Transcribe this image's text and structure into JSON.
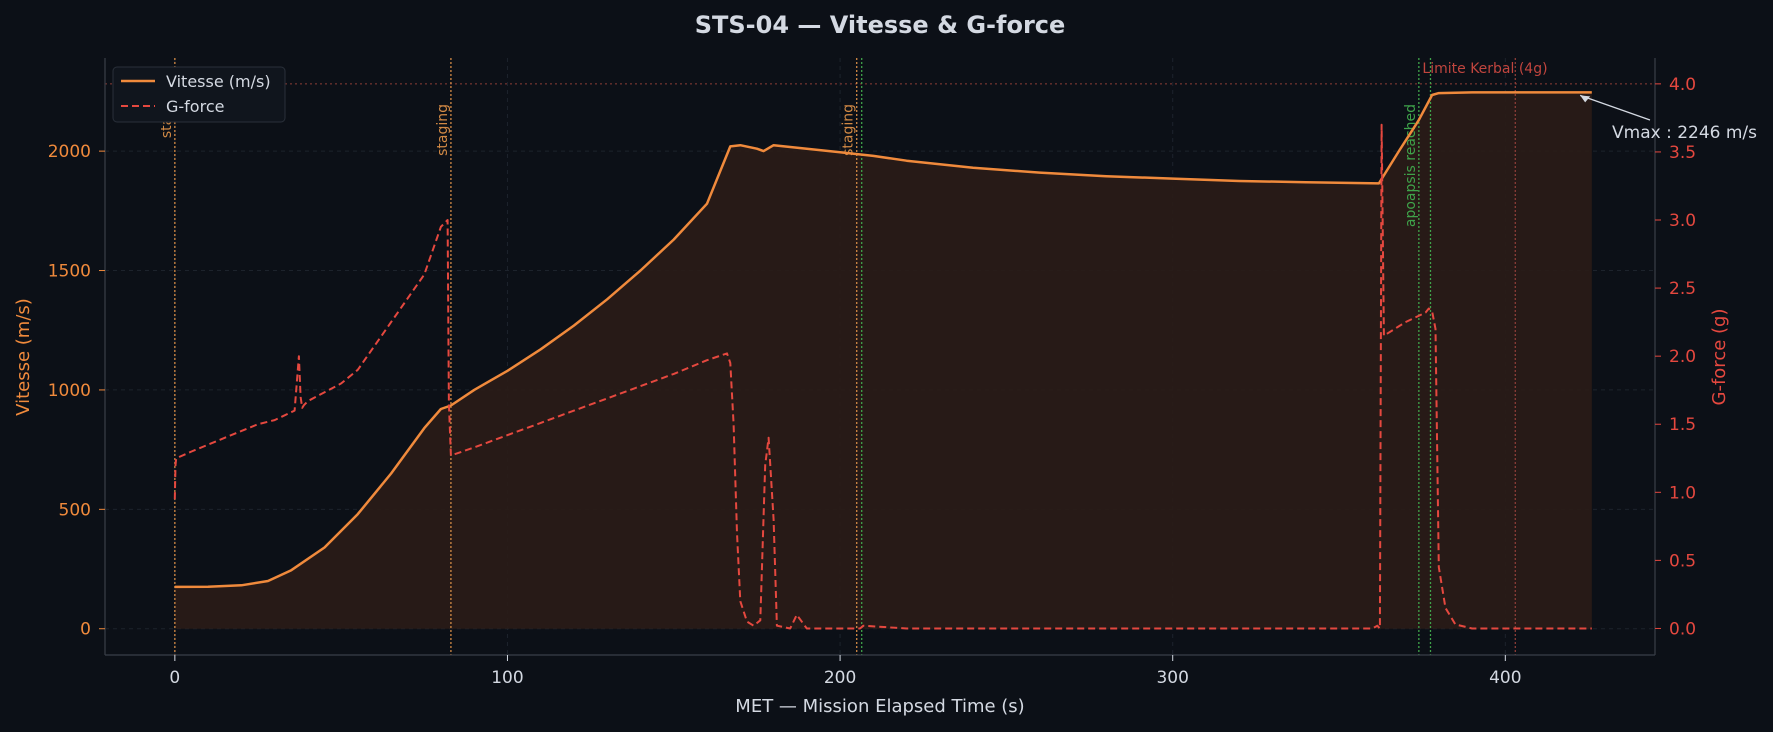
{
  "chart_data": {
    "type": "line",
    "title": "STS-04 — Vitesse & G-force",
    "xlabel": "MET — Mission Elapsed Time (s)",
    "ylabel_left": "Vitesse (m/s)",
    "ylabel_right": "G-force (g)",
    "xlim": [
      -21,
      445
    ],
    "ylim_left": [
      -110,
      2390
    ],
    "ylim_right": [
      -0.195,
      4.19
    ],
    "x_ticks": [
      0,
      100,
      200,
      300,
      400
    ],
    "y_left_ticks": [
      0,
      500,
      1000,
      1500,
      2000
    ],
    "y_right_ticks": [
      0.0,
      0.5,
      1.0,
      1.5,
      2.0,
      2.5,
      3.0,
      3.5,
      4.0
    ],
    "grid": true,
    "legend_position": "top-left",
    "colors": {
      "background": "#0c1017",
      "axes": "#3a3f48",
      "grid": "#1d232c",
      "text": "#d4d9e2",
      "velocity": "#f08a3c",
      "velocity_fill": "#2a1c17",
      "gforce": "#e5483f",
      "staging_marker": "#d38a45",
      "apoapsis_marker": "#3fa34a",
      "limit_line": "#8c3c37",
      "limit_label": "#c0453e",
      "annotation": "#d4d9e2"
    },
    "series": [
      {
        "name": "Vitesse (m/s)",
        "axis": "left",
        "style": "solid",
        "x": [
          0,
          10,
          20,
          28,
          35,
          45,
          55,
          65,
          75,
          80,
          83,
          90,
          100,
          110,
          120,
          130,
          140,
          150,
          160,
          167,
          170,
          175,
          177,
          180,
          190,
          200,
          210,
          220,
          240,
          260,
          280,
          300,
          320,
          340,
          362,
          368,
          374,
          378,
          380,
          390,
          400,
          410,
          426
        ],
        "values": [
          175,
          176,
          182,
          200,
          245,
          340,
          480,
          650,
          840,
          920,
          935,
          1000,
          1080,
          1170,
          1270,
          1380,
          1500,
          1630,
          1780,
          2020,
          2025,
          2010,
          2000,
          2025,
          2010,
          1995,
          1980,
          1960,
          1930,
          1910,
          1895,
          1885,
          1875,
          1870,
          1865,
          2000,
          2130,
          2235,
          2243,
          2246,
          2246,
          2246,
          2246
        ]
      },
      {
        "name": "G-force",
        "axis": "right",
        "style": "dashed",
        "x": [
          0,
          0.2,
          0.4,
          5,
          15,
          25,
          30,
          36,
          37.3,
          37.8,
          38.3,
          38.8,
          40,
          50,
          55,
          65,
          75,
          80,
          82,
          82.4,
          83,
          90,
          100,
          110,
          120,
          130,
          140,
          150,
          160,
          166,
          167,
          168,
          169,
          170,
          172,
          174,
          176,
          177.5,
          178.5,
          180,
          181,
          185,
          187,
          190,
          200,
          206,
          207,
          220,
          300,
          355,
          360,
          361.5,
          362.3,
          362.8,
          363.5,
          370,
          376,
          377,
          378,
          379,
          380,
          382,
          385,
          390,
          400,
          426
        ],
        "values": [
          0.95,
          1.2,
          1.25,
          1.3,
          1.4,
          1.5,
          1.53,
          1.6,
          2.0,
          1.7,
          1.62,
          1.64,
          1.67,
          1.8,
          1.9,
          2.25,
          2.6,
          2.95,
          3.0,
          1.65,
          1.27,
          1.33,
          1.42,
          1.51,
          1.6,
          1.69,
          1.78,
          1.87,
          1.97,
          2.02,
          1.95,
          1.5,
          0.7,
          0.2,
          0.05,
          0.02,
          0.06,
          1.2,
          1.4,
          0.8,
          0.02,
          0.0,
          0.1,
          0.0,
          0.0,
          0.0,
          0.02,
          0.0,
          0.0,
          0.0,
          0.0,
          0.02,
          0.0,
          3.7,
          2.15,
          2.25,
          2.32,
          2.35,
          2.33,
          2.2,
          0.45,
          0.15,
          0.03,
          0.0,
          0.0,
          0.0
        ]
      }
    ],
    "markers": [
      {
        "x": 0,
        "label": "stagi",
        "kind": "staging"
      },
      {
        "x": 83,
        "label": "staging",
        "kind": "staging"
      },
      {
        "x": 205,
        "label": "staging",
        "kind": "staging"
      },
      {
        "x": 206.5,
        "label": "",
        "kind": "apoapsis"
      },
      {
        "x": 374,
        "label": "apoapsis reached",
        "kind": "apoapsis"
      },
      {
        "x": 377.5,
        "label": "",
        "kind": "apoapsis"
      },
      {
        "x": 403,
        "label": "",
        "kind": "limit_vertical"
      }
    ],
    "limit_line": {
      "y": 4.0,
      "label": "Limite Kerbal (4g)"
    },
    "annotation": {
      "text": "Vmax : 2246 m/s",
      "x": 424,
      "y": 2246
    },
    "fill_under": "Vitesse (m/s)"
  }
}
